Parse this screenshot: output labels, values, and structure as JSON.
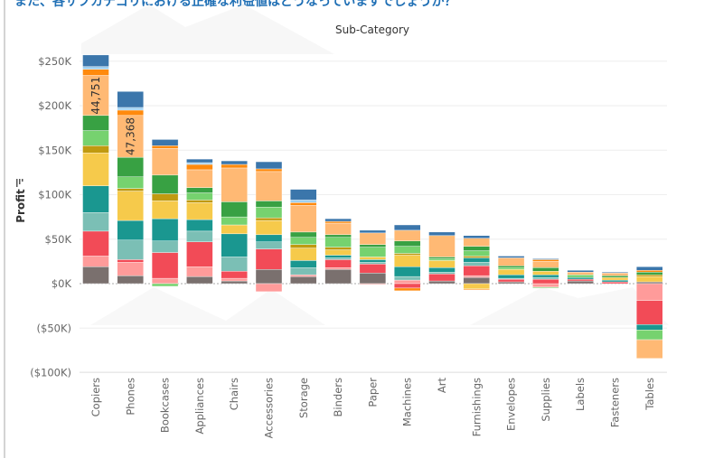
{
  "header": {
    "question": "また、各サブカテゴリにおける正確な利益値はどうなっていますでしょうか？"
  },
  "chart_data": {
    "type": "bar",
    "stacked": true,
    "title": "Sub-Category",
    "xlabel": "",
    "ylabel": "Profit",
    "ylim": [
      -100,
      255
    ],
    "yticks": [
      250,
      200,
      150,
      100,
      50,
      0,
      -50,
      -100
    ],
    "ytick_labels": [
      "$250K",
      "$200K",
      "$150K",
      "$100K",
      "$50K",
      "$0K",
      "($50K)",
      "($100K)"
    ],
    "units": "thousands of dollars",
    "grid": true,
    "categories": [
      "Copiers",
      "Phones",
      "Bookcases",
      "Appliances",
      "Chairs",
      "Accessories",
      "Storage",
      "Binders",
      "Paper",
      "Machines",
      "Art",
      "Furnishings",
      "Envelopes",
      "Supplies",
      "Labels",
      "Fasteners",
      "Tables"
    ],
    "series": [
      {
        "color": "#7a706e",
        "values": [
          19,
          9,
          0,
          8,
          3,
          16,
          8,
          16,
          12,
          0,
          3,
          7,
          2,
          0,
          3,
          0,
          2
        ]
      },
      {
        "color": "#ff9b9a",
        "values": [
          12,
          15,
          6,
          11,
          3,
          -9,
          2,
          2,
          -1,
          4,
          0,
          2,
          0,
          -4,
          0,
          0,
          -19
        ]
      },
      {
        "color": "#f24b57",
        "values": [
          28,
          3,
          29,
          28,
          8,
          23,
          0,
          9,
          10,
          -5,
          8,
          11,
          3,
          5,
          2,
          2,
          -27
        ]
      },
      {
        "color": "#7bbfb5",
        "values": [
          21,
          22,
          13,
          12,
          16,
          8,
          8,
          2,
          2,
          4,
          2,
          4,
          1,
          2,
          0,
          0,
          0
        ]
      },
      {
        "color": "#1a9790",
        "values": [
          30,
          22,
          25,
          13,
          26,
          8,
          8,
          3,
          3,
          11,
          5,
          5,
          4,
          3,
          2,
          2,
          -6
        ]
      },
      {
        "color": "#f6ca4b",
        "values": [
          37,
          33,
          20,
          19,
          10,
          16,
          14,
          6,
          3,
          13,
          8,
          -6,
          6,
          4,
          0,
          3,
          6
        ]
      },
      {
        "color": "#c09a10",
        "values": [
          8,
          3,
          8,
          3,
          0,
          3,
          4,
          3,
          0,
          2,
          0,
          2,
          0,
          0,
          0,
          0,
          2
        ]
      },
      {
        "color": "#76d26f",
        "values": [
          17,
          13,
          -3,
          8,
          9,
          12,
          8,
          11,
          11,
          8,
          2,
          6,
          2,
          -1,
          3,
          0,
          -11
        ]
      },
      {
        "color": "#38a143",
        "values": [
          17,
          22,
          21,
          6,
          17,
          7,
          6,
          3,
          3,
          6,
          2,
          5,
          2,
          4,
          0,
          2,
          3
        ]
      },
      {
        "color": "#ffb974",
        "values": [
          45,
          47,
          30,
          20,
          38,
          33,
          30,
          13,
          13,
          12,
          23,
          9,
          9,
          7,
          3,
          3,
          -21
        ]
      },
      {
        "color": "#ff8a0d",
        "values": [
          7,
          6,
          3,
          6,
          4,
          3,
          3,
          2,
          0,
          -3,
          1,
          -1,
          0,
          2,
          0,
          0,
          2
        ]
      },
      {
        "color": "#9fd0f0",
        "values": [
          3,
          3,
          0,
          2,
          0,
          0,
          3,
          0,
          0,
          0,
          0,
          0,
          0,
          0,
          0,
          0,
          0
        ]
      },
      {
        "color": "#3b76ab",
        "values": [
          13,
          18,
          7,
          4,
          4,
          8,
          12,
          3,
          3,
          6,
          4,
          3,
          2,
          1,
          2,
          1,
          4
        ]
      }
    ],
    "data_labels": [
      {
        "category": "Copiers",
        "series_index": 9,
        "text": "44,751"
      },
      {
        "category": "Phones",
        "series_index": 9,
        "text": "47,368"
      }
    ]
  }
}
